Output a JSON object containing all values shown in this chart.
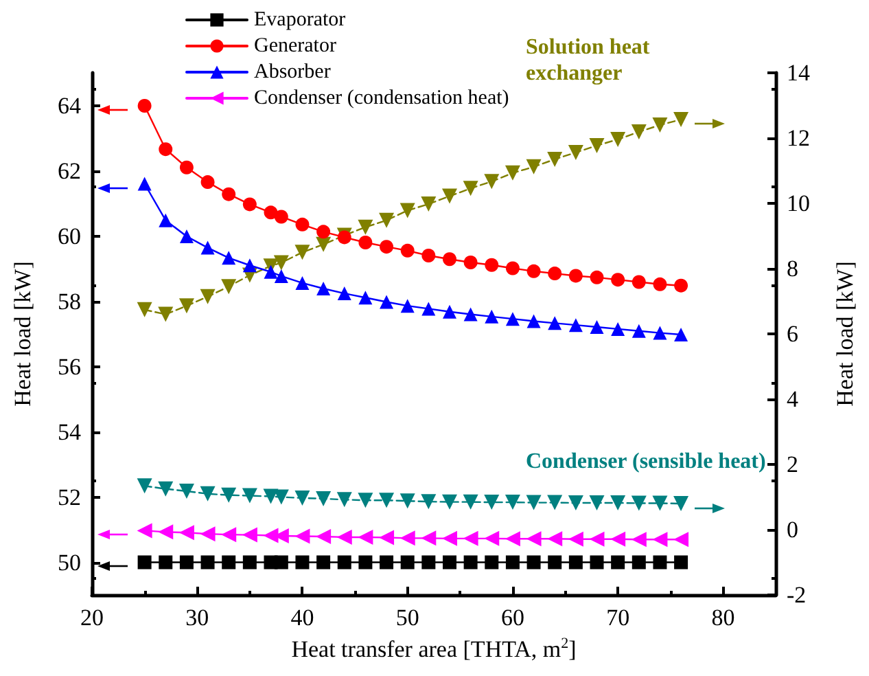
{
  "chart_data": {
    "type": "line",
    "xlabel": "Heat transfer area [THTA, m$^{2}$]",
    "ylabel": "Heat load [kW]",
    "y2label": "Heat load [kW]",
    "x": [
      25,
      27,
      29,
      31,
      33,
      35,
      37,
      38,
      40,
      42,
      44,
      46,
      48,
      50,
      52,
      54,
      56,
      58,
      60,
      62,
      64,
      66,
      68,
      70,
      72,
      74,
      76
    ],
    "xlim": [
      20,
      85
    ],
    "xticks": [
      20,
      30,
      40,
      50,
      60,
      70,
      80
    ],
    "ylim": [
      49,
      65
    ],
    "yticks": [
      50,
      52,
      54,
      56,
      58,
      60,
      62,
      64
    ],
    "y2lim": [
      -2,
      14
    ],
    "y2ticks": [
      -2,
      0,
      2,
      4,
      6,
      8,
      10,
      12,
      14
    ],
    "grid": false,
    "legend": "top",
    "series": [
      {
        "name": "Evaporator",
        "color": "#000000",
        "marker": "square",
        "values": [
          50,
          50,
          50,
          50,
          50,
          50,
          50,
          50,
          50,
          50,
          50,
          50,
          50,
          50,
          50,
          50,
          50,
          50,
          50,
          50,
          50,
          50,
          50,
          50,
          50,
          50,
          50
        ]
      },
      {
        "name": "Generator",
        "color": "#ff0000",
        "marker": "circle",
        "values": [
          63.99,
          62.66,
          62.1,
          61.65,
          61.28,
          60.97,
          60.72,
          60.59,
          60.35,
          60.13,
          59.96,
          59.8,
          59.67,
          59.55,
          59.4,
          59.29,
          59.19,
          59.11,
          59.01,
          58.92,
          58.85,
          58.78,
          58.73,
          58.66,
          58.59,
          58.52,
          58.48
        ]
      },
      {
        "name": "Absorber",
        "color": "#0000ff",
        "marker": "triangle",
        "values": [
          61.6,
          60.48,
          59.99,
          59.64,
          59.33,
          59.1,
          58.9,
          58.77,
          58.56,
          58.39,
          58.24,
          58.11,
          57.98,
          57.86,
          57.77,
          57.68,
          57.6,
          57.53,
          57.46,
          57.39,
          57.33,
          57.27,
          57.21,
          57.15,
          57.09,
          57.03,
          56.98
        ]
      },
      {
        "name": "Condenser (condensation heat)",
        "color": "#ff00ff",
        "marker": "triangle-left",
        "values": [
          50.97,
          50.93,
          50.91,
          50.87,
          50.85,
          50.84,
          50.82,
          50.81,
          50.8,
          50.79,
          50.77,
          50.77,
          50.76,
          50.74,
          50.74,
          50.73,
          50.73,
          50.73,
          50.72,
          50.72,
          50.72,
          50.71,
          50.71,
          50.71,
          50.7,
          50.7,
          50.7
        ]
      },
      {
        "name": "Solution heat exchanger",
        "color": "#808000",
        "marker": "triangle-down",
        "line_style": "dashed",
        "axis": "y2",
        "values": [
          6.74,
          6.6,
          6.86,
          7.14,
          7.45,
          7.8,
          8.08,
          8.18,
          8.5,
          8.74,
          9.02,
          9.27,
          9.48,
          9.78,
          9.98,
          10.22,
          10.46,
          10.67,
          10.93,
          11.12,
          11.35,
          11.56,
          11.77,
          11.96,
          12.19,
          12.4,
          12.57
        ]
      },
      {
        "name": "Condenser (sensible heat)",
        "color": "#008080",
        "marker": "triangle-down",
        "line_style": "dashed",
        "axis": "y2",
        "values": [
          1.34,
          1.25,
          1.18,
          1.1,
          1.06,
          1.04,
          1.02,
          1.0,
          0.97,
          0.95,
          0.92,
          0.9,
          0.9,
          0.88,
          0.86,
          0.85,
          0.85,
          0.84,
          0.84,
          0.83,
          0.83,
          0.82,
          0.82,
          0.82,
          0.81,
          0.81,
          0.8
        ]
      }
    ]
  }
}
